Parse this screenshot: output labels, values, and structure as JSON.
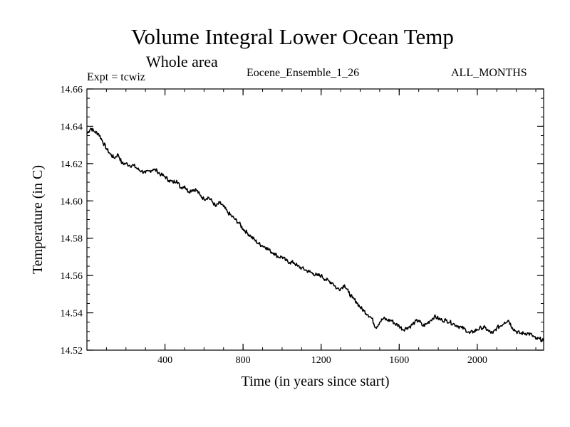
{
  "chart_data": {
    "type": "line",
    "title": "Volume Integral Lower Ocean Temp",
    "subtitle": "Whole area",
    "annotations": {
      "experiment": "Expt = tcwiz",
      "ensemble": "Eocene_Ensemble_1_26",
      "months": "ALL_MONTHS"
    },
    "xlabel": "Time (in years since start)",
    "ylabel": "Temperature (in C)",
    "xlim": [
      0,
      2340
    ],
    "ylim": [
      14.52,
      14.66
    ],
    "xticks": [
      400,
      800,
      1200,
      1600,
      2000
    ],
    "xtick_labels": [
      "400",
      "800",
      "1200",
      "1600",
      "2000"
    ],
    "yticks": [
      14.52,
      14.54,
      14.56,
      14.58,
      14.6,
      14.62,
      14.64,
      14.66
    ],
    "ytick_labels": [
      "14.52",
      "14.54",
      "14.56",
      "14.58",
      "14.60",
      "14.62",
      "14.64",
      "14.66"
    ],
    "grid": false,
    "series": [
      {
        "x": [
          0,
          20,
          40,
          60,
          80,
          100,
          120,
          140,
          160,
          180,
          200,
          220,
          240,
          260,
          280,
          300,
          320,
          340,
          360,
          380,
          400,
          420,
          440,
          460,
          480,
          500,
          520,
          540,
          560,
          580,
          600,
          620,
          640,
          660,
          680,
          700,
          720,
          740,
          760,
          780,
          800,
          820,
          840,
          860,
          880,
          900,
          920,
          940,
          960,
          980,
          1000,
          1020,
          1040,
          1060,
          1080,
          1100,
          1120,
          1140,
          1160,
          1180,
          1200,
          1220,
          1240,
          1260,
          1280,
          1300,
          1320,
          1340,
          1360,
          1380,
          1400,
          1420,
          1440,
          1460,
          1480,
          1500,
          1520,
          1540,
          1560,
          1580,
          1600,
          1620,
          1640,
          1660,
          1680,
          1700,
          1720,
          1740,
          1760,
          1780,
          1800,
          1820,
          1840,
          1860,
          1880,
          1900,
          1920,
          1940,
          1960,
          1980,
          2000,
          2020,
          2040,
          2060,
          2080,
          2100,
          2120,
          2140,
          2160,
          2180,
          2200,
          2220,
          2240,
          2260,
          2280,
          2300,
          2320,
          2340
        ],
        "y": [
          14.636,
          14.639,
          14.637,
          14.636,
          14.632,
          14.628,
          14.625,
          14.623,
          14.625,
          14.62,
          14.62,
          14.619,
          14.619,
          14.617,
          14.616,
          14.615,
          14.616,
          14.617,
          14.616,
          14.614,
          14.613,
          14.611,
          14.61,
          14.611,
          14.607,
          14.608,
          14.605,
          14.606,
          14.606,
          14.603,
          14.601,
          14.602,
          14.6,
          14.597,
          14.599,
          14.597,
          14.594,
          14.592,
          14.59,
          14.588,
          14.585,
          14.583,
          14.581,
          14.579,
          14.577,
          14.576,
          14.575,
          14.573,
          14.572,
          14.57,
          14.57,
          14.568,
          14.567,
          14.567,
          14.565,
          14.564,
          14.563,
          14.562,
          14.561,
          14.56,
          14.56,
          14.558,
          14.557,
          14.556,
          14.553,
          14.553,
          14.555,
          14.551,
          14.548,
          14.546,
          14.543,
          14.541,
          14.539,
          14.537,
          14.532,
          14.535,
          14.537,
          14.536,
          14.536,
          14.534,
          14.533,
          14.531,
          14.532,
          14.533,
          14.535,
          14.536,
          14.533,
          14.534,
          14.536,
          14.538,
          14.537,
          14.536,
          14.536,
          14.535,
          14.534,
          14.533,
          14.532,
          14.531,
          14.529,
          14.53,
          14.531,
          14.532,
          14.532,
          14.53,
          14.529,
          14.532,
          14.533,
          14.535,
          14.536,
          14.532,
          14.53,
          14.529,
          14.529,
          14.529,
          14.528,
          14.526,
          14.526,
          14.525
        ]
      }
    ]
  }
}
